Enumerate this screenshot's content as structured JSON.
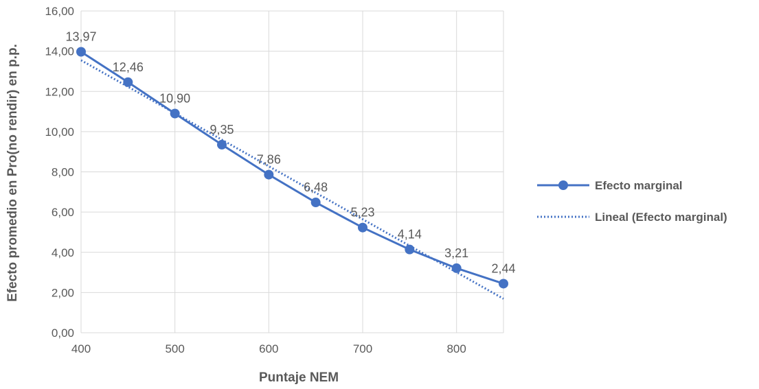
{
  "chart_data": {
    "type": "line",
    "xlabel": "Puntaje NEM",
    "ylabel": "Efecto promedio en Pro(no rendir) en p.p.",
    "xlim": [
      400,
      850
    ],
    "ylim": [
      0,
      16
    ],
    "x_ticks": [
      "400",
      "500",
      "600",
      "700",
      "800"
    ],
    "y_ticks": [
      "0,00",
      "2,00",
      "4,00",
      "6,00",
      "8,00",
      "10,00",
      "12,00",
      "14,00",
      "16,00"
    ],
    "grid": "vertical and horizontal",
    "legend": "right",
    "series": [
      {
        "name": "Efecto marginal",
        "color": "#4472c4",
        "x": [
          400,
          450,
          500,
          550,
          600,
          650,
          700,
          750,
          800,
          850
        ],
        "values": [
          13.97,
          12.46,
          10.9,
          9.35,
          7.86,
          6.48,
          5.23,
          4.14,
          3.21,
          2.44
        ],
        "labels": [
          "13,97",
          "12,46",
          "10,90",
          "9,35",
          "7,86",
          "6,48",
          "5,23",
          "4,14",
          "3,21",
          "2,44"
        ]
      },
      {
        "name": "Lineal (Efecto marginal)",
        "color": "#4472c4",
        "style": "dotted",
        "trendline": true,
        "x": [
          400,
          850
        ],
        "values": [
          13.55,
          1.69
        ]
      }
    ]
  }
}
